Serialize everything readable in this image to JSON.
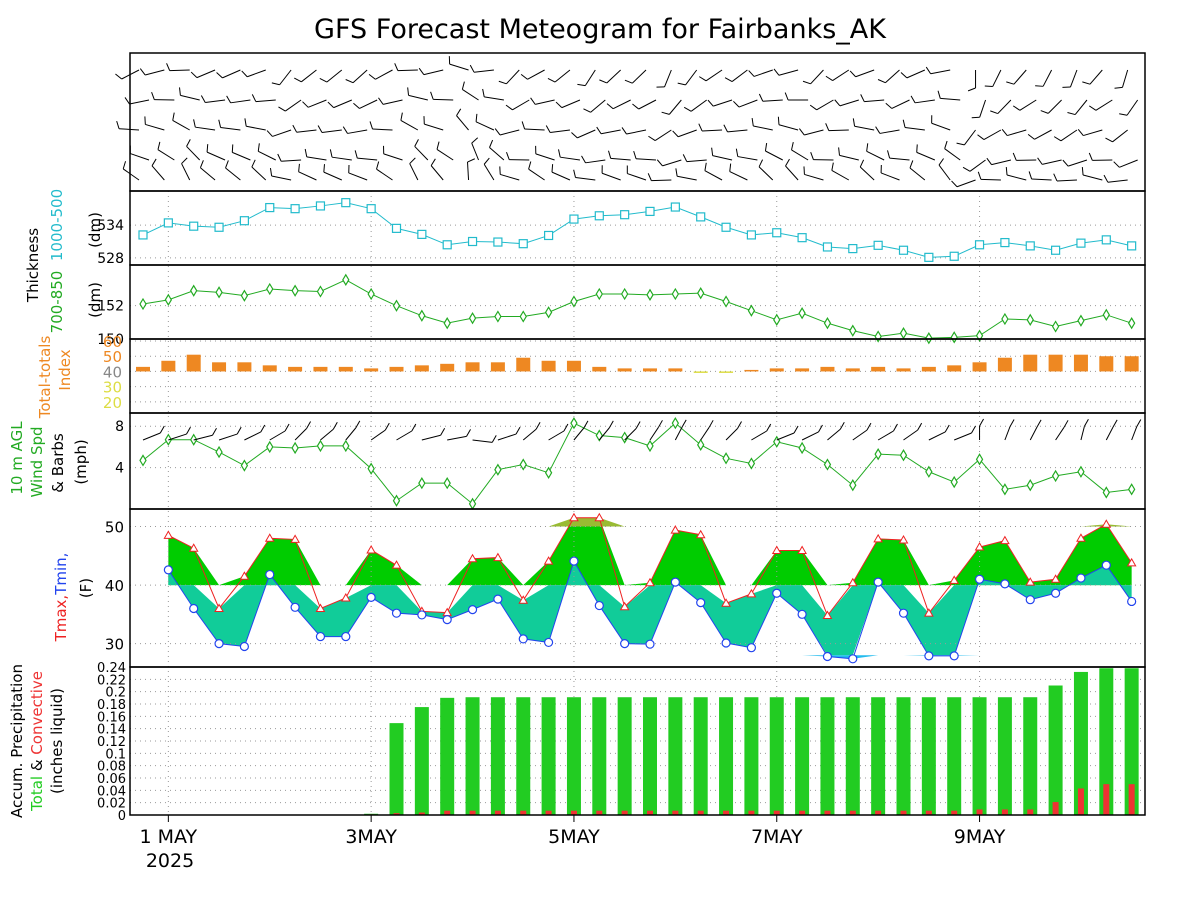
{
  "title": "GFS Forecast Meteogram for Fairbanks_AK",
  "colors": {
    "thickness_1000_500": "#22bbcc",
    "thickness_700_850": "#22aa22",
    "total_totals": "#ee8822",
    "total_totals_low": "#dddd44",
    "wind": "#22aa22",
    "tmax": "#ee2222",
    "tmin": "#2244ee",
    "fill_warm": "#00cc00",
    "fill_cool": "#11cc99",
    "fill_cold": "#22bbee",
    "fill_hot": "#99bb33",
    "precip_total": "#22cc22",
    "precip_conv": "#ee3333"
  },
  "labels": {
    "thickness": "Thickness",
    "th_1000_500": "1000-500",
    "th_700_850": "700-850",
    "th_unit": "(dm)",
    "tt_line1": "Total-totals",
    "tt_line2": "Index",
    "wind_line1": "10 m AGL",
    "wind_line2": "Wind Spd",
    "wind_line3": "& Barbs",
    "wind_line4": "(mph)",
    "temp_tmax": "Tmax,",
    "temp_tmin": "Tmin,",
    "temp_unit": "(F)",
    "precip_line1": "Accum. Precipitation",
    "precip_total": "Total",
    "precip_amp": " & ",
    "precip_conv": "Convective",
    "precip_unit": "(inches liquid)"
  },
  "x_ticks": [
    {
      "label": "1 MAY",
      "index": 1
    },
    {
      "label": "3MAY",
      "index": 9
    },
    {
      "label": "5MAY",
      "index": 17
    },
    {
      "label": "7MAY",
      "index": 25
    },
    {
      "label": "9MAY",
      "index": 33
    }
  ],
  "year_label": "2025",
  "chart_data": [
    {
      "type": "line",
      "name": "1000-500 Thickness",
      "ylabel": "(dm)",
      "yticks": [
        528,
        534
      ],
      "ylim": [
        527.8,
        539.5
      ],
      "values": [
        532.2,
        534.4,
        533.8,
        533.6,
        534.8,
        537.2,
        537.0,
        537.5,
        538.1,
        537.0,
        533.4,
        532.3,
        530.4,
        531.0,
        530.9,
        530.6,
        532.1,
        535.1,
        535.7,
        535.9,
        536.5,
        537.3,
        535.5,
        533.6,
        532.2,
        532.6,
        531.7,
        530.0,
        529.7,
        530.3,
        529.4,
        528.1,
        528.3,
        530.4,
        530.8,
        530.2,
        529.4,
        530.7,
        531.3,
        530.2
      ]
    },
    {
      "type": "line",
      "name": "700-850 Thickness",
      "ylabel": "(dm)",
      "yticks": [
        150,
        152
      ],
      "ylim": [
        150,
        154.2
      ],
      "values": [
        152.1,
        152.35,
        152.9,
        152.8,
        152.6,
        153.0,
        152.9,
        152.85,
        153.55,
        152.7,
        152.0,
        151.4,
        150.95,
        151.25,
        151.35,
        151.35,
        151.6,
        152.25,
        152.7,
        152.7,
        152.65,
        152.7,
        152.75,
        152.25,
        151.7,
        151.15,
        151.55,
        150.95,
        150.5,
        150.15,
        150.35,
        150.05,
        150.1,
        150.2,
        151.2,
        151.15,
        150.75,
        151.1,
        151.45,
        150.95
      ]
    },
    {
      "type": "bar",
      "name": "Total-totals Index",
      "ylabel": "Index",
      "yticks": [
        20,
        30,
        40,
        50,
        60
      ],
      "ylim": [
        14,
        60
      ],
      "baseline": 40,
      "values": [
        43,
        47,
        51,
        46,
        46,
        44,
        43,
        43,
        43,
        42,
        43,
        44,
        45,
        46,
        46,
        49,
        47,
        47,
        43,
        42,
        42,
        42,
        40,
        40,
        41,
        42,
        42,
        43,
        42,
        43,
        42,
        43,
        44,
        46,
        49,
        51,
        51,
        51,
        50,
        50
      ]
    },
    {
      "type": "line",
      "name": "10 m Wind Speed",
      "ylabel": "(mph)",
      "yticks": [
        4,
        8
      ],
      "ylim": [
        0,
        8.7
      ],
      "values": [
        4.7,
        6.7,
        6.7,
        5.5,
        4.2,
        6.0,
        5.9,
        6.1,
        6.1,
        3.9,
        0.8,
        2.5,
        2.5,
        0.5,
        3.8,
        4.3,
        3.5,
        8.3,
        7.1,
        6.9,
        6.1,
        8.3,
        6.2,
        4.9,
        4.4,
        6.5,
        5.9,
        4.3,
        2.3,
        5.3,
        5.2,
        3.6,
        2.6,
        4.8,
        1.9,
        2.3,
        3.2,
        3.6,
        1.6,
        1.9
      ],
      "barb_directions": [
        240,
        245,
        250,
        245,
        235,
        230,
        215,
        220,
        210,
        225,
        230,
        250,
        255,
        280,
        245,
        220,
        230,
        210,
        210,
        215,
        205,
        200,
        205,
        215,
        230,
        240,
        235,
        220,
        225,
        230,
        225,
        235,
        240,
        180,
        195,
        200,
        205,
        190,
        200,
        195
      ]
    },
    {
      "type": "area",
      "name": "Temperature",
      "ylabel": "(F)",
      "yticks": [
        30,
        40,
        50
      ],
      "ylim": [
        26,
        53
      ],
      "series": [
        {
          "name": "Tmax",
          "values": [
            48.5,
            46.3,
            36.0,
            41.5,
            48.0,
            47.8,
            36.0,
            37.8,
            46.0,
            43.4,
            35.5,
            35.3,
            44.5,
            44.7,
            37.4,
            44.1,
            51.5,
            51.5,
            36.3,
            40.4,
            49.4,
            48.6,
            36.9,
            38.5,
            45.9,
            45.9,
            34.8,
            40.4,
            47.9,
            47.7,
            35.2,
            40.8,
            46.5,
            47.6,
            40.5,
            41.0,
            48.0,
            50.4,
            43.8
          ]
        },
        {
          "name": "Tmin",
          "values": [
            42.6,
            36.0,
            30.0,
            29.5,
            41.8,
            36.2,
            31.2,
            31.2,
            37.9,
            35.2,
            34.9,
            34.1,
            35.8,
            37.6,
            30.8,
            30.2,
            44.1,
            36.5,
            30.0,
            29.9,
            40.5,
            37.0,
            30.1,
            29.3,
            38.6,
            35.0,
            27.8,
            27.4,
            40.5,
            35.2,
            27.9,
            27.9,
            41.0,
            40.2,
            37.5,
            38.6,
            41.2,
            43.4,
            37.2
          ]
        }
      ]
    },
    {
      "type": "bar",
      "name": "Accumulated Precipitation",
      "ylabel": "(inches liquid)",
      "yticks": [
        0,
        0.02,
        0.04,
        0.06,
        0.08,
        0.1,
        0.12,
        0.14,
        0.16,
        0.18,
        0.2,
        0.22,
        0.24
      ],
      "ylim": [
        0,
        0.24
      ],
      "series": [
        {
          "name": "Total",
          "values": [
            0,
            0,
            0,
            0,
            0,
            0,
            0,
            0,
            0.002,
            0.149,
            0.175,
            0.19,
            0.191,
            0.191,
            0.191,
            0.191,
            0.191,
            0.191,
            0.191,
            0.191,
            0.191,
            0.191,
            0.191,
            0.191,
            0.191,
            0.191,
            0.191,
            0.191,
            0.191,
            0.191,
            0.191,
            0.191,
            0.191,
            0.191,
            0.191,
            0.21,
            0.232,
            0.238,
            0.238
          ]
        },
        {
          "name": "Convective",
          "values": [
            0,
            0,
            0,
            0,
            0,
            0,
            0,
            0,
            0.001,
            0.003,
            0.004,
            0.007,
            0.007,
            0.007,
            0.007,
            0.007,
            0.007,
            0.007,
            0.007,
            0.007,
            0.007,
            0.007,
            0.007,
            0.007,
            0.007,
            0.007,
            0.007,
            0.007,
            0.007,
            0.007,
            0.007,
            0.007,
            0.009,
            0.009,
            0.009,
            0.021,
            0.043,
            0.05,
            0.05
          ]
        }
      ]
    }
  ]
}
